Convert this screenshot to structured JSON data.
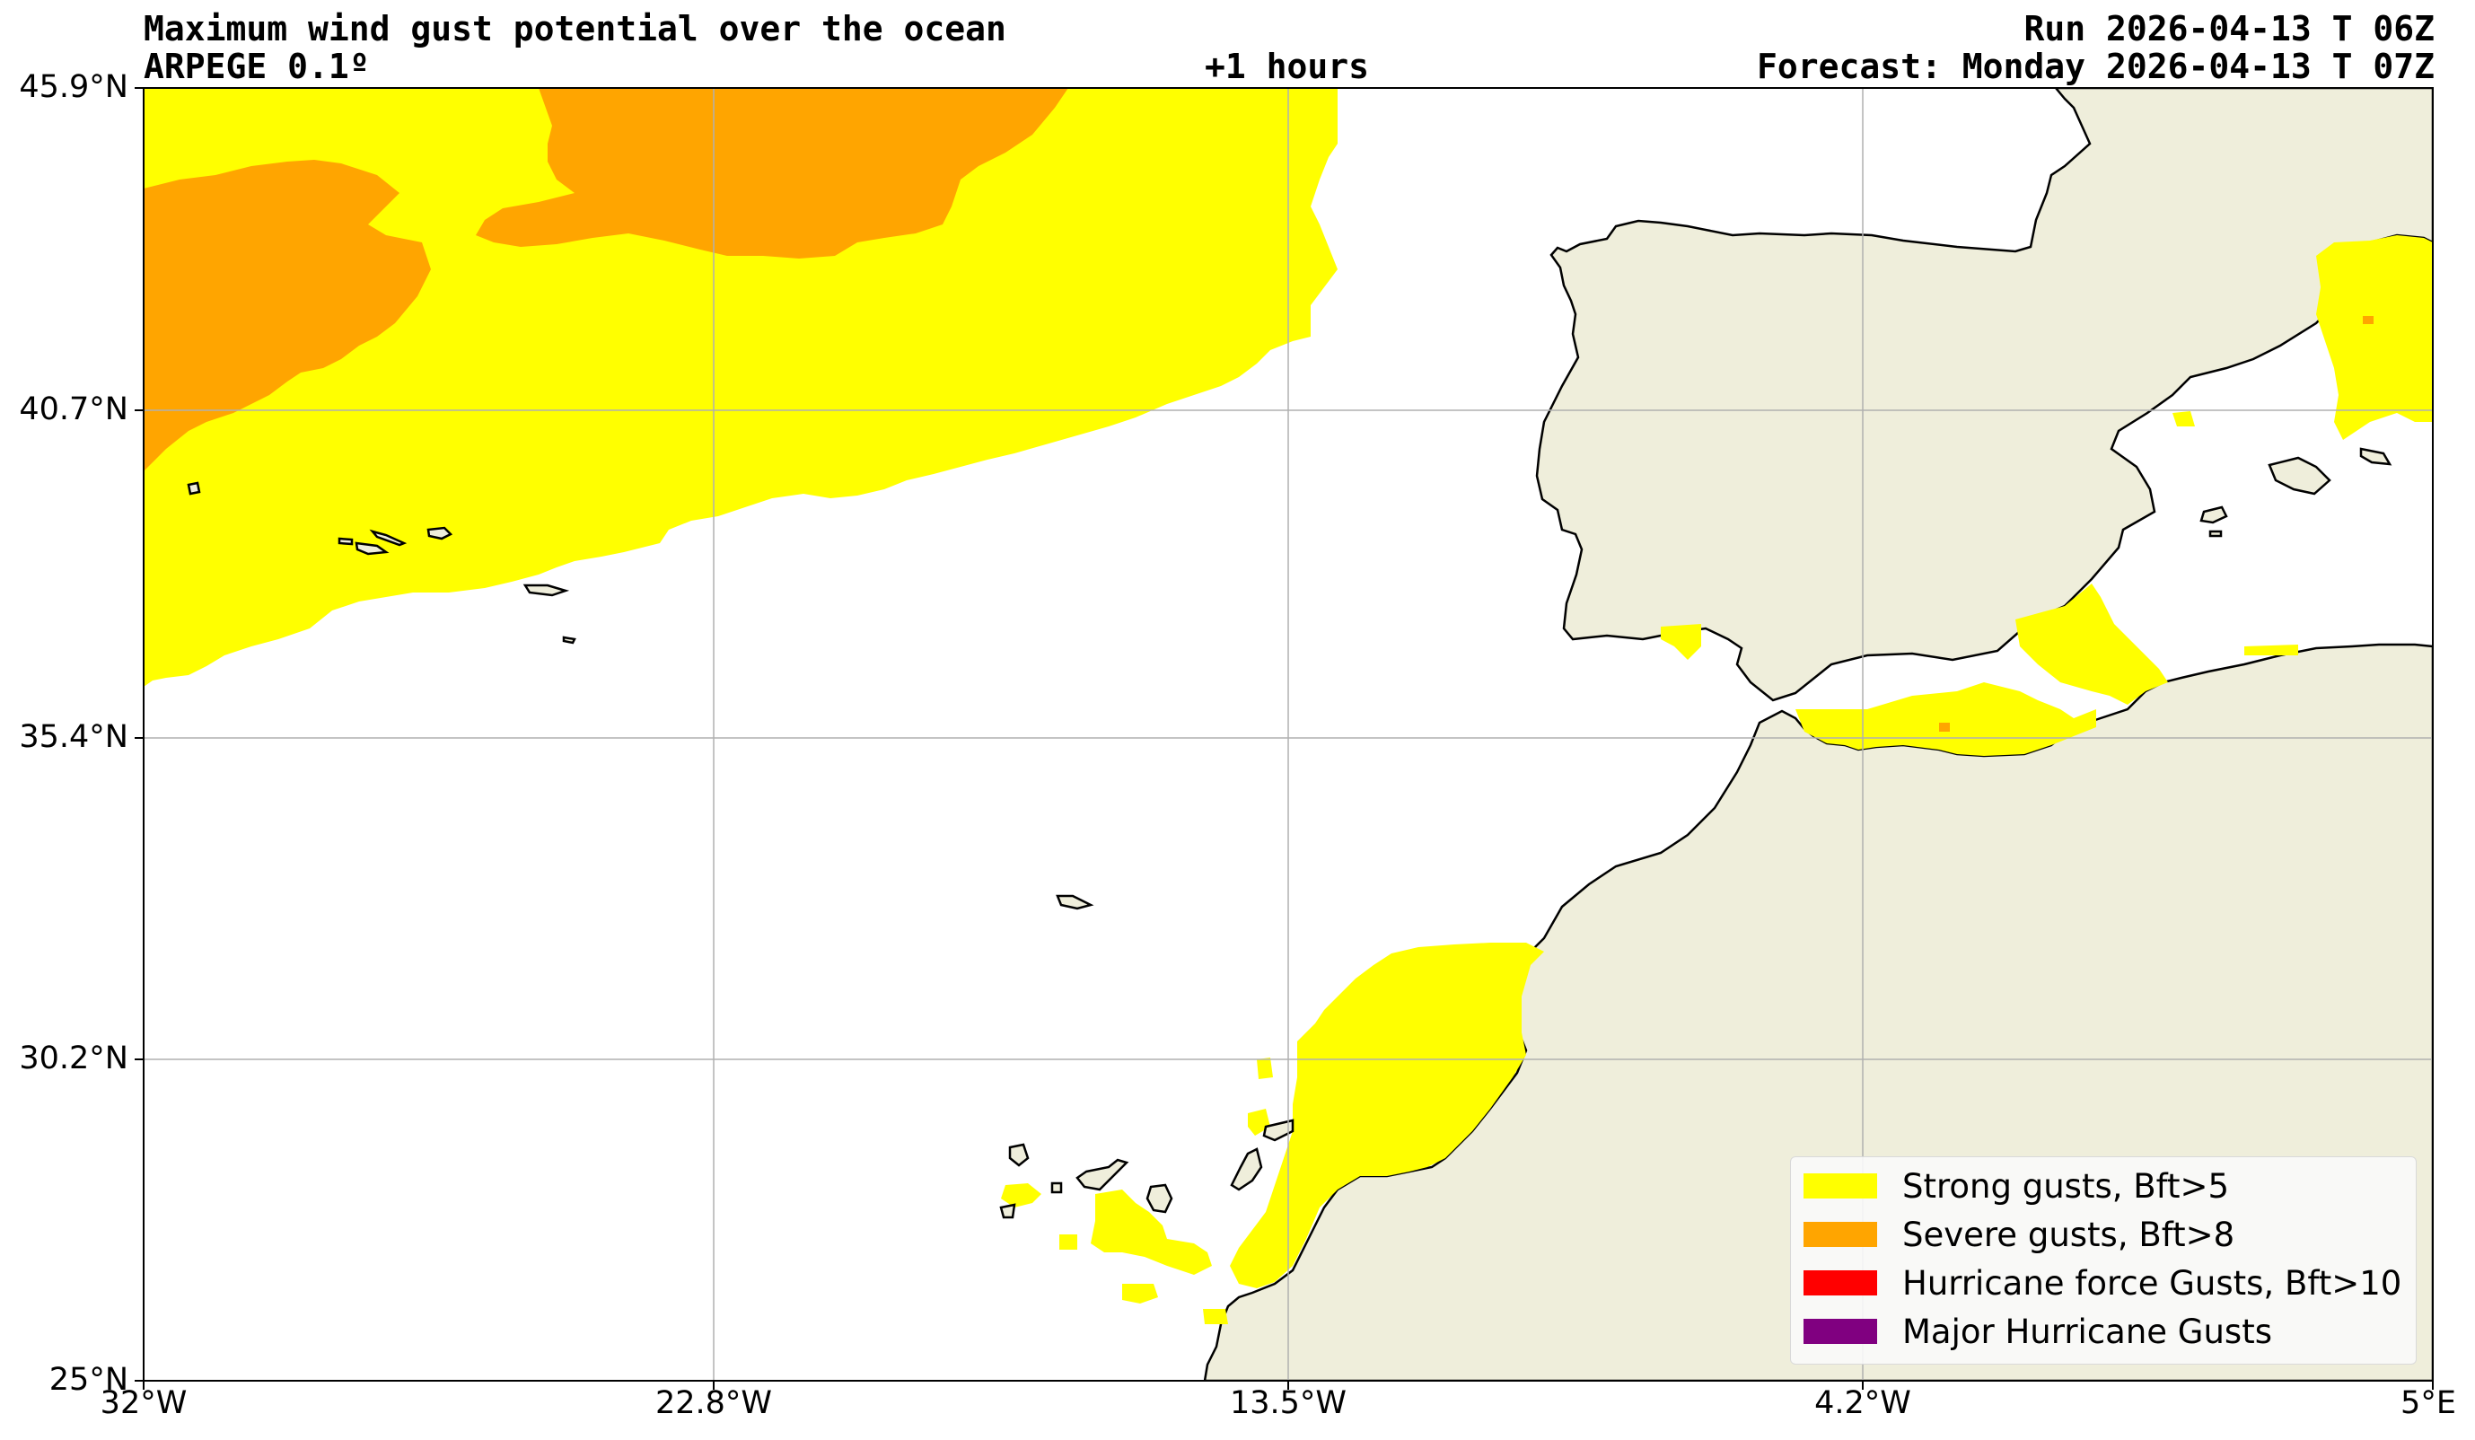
{
  "header": {
    "title": "Maximum wind gust potential over the ocean",
    "model": "ARPEGE 0.1º",
    "lead": "+1 hours",
    "run": "Run 2026-04-13 T 06Z",
    "forecast": "Forecast: Monday 2026-04-13 T 07Z"
  },
  "axes": {
    "lat_ticks": [
      "45.9°N",
      "40.7°N",
      "35.4°N",
      "30.2°N",
      "25°N"
    ],
    "lon_ticks": [
      "32°W",
      "22.8°W",
      "13.5°W",
      "4.2°W",
      "5°E"
    ],
    "lat_range": [
      25,
      45.9
    ],
    "lon_range": [
      -32,
      5
    ],
    "grid": true
  },
  "colors": {
    "land": "#efeedb",
    "ocean": "#ffffff",
    "strong": "#ffff00",
    "severe": "#ffa500",
    "hurricane": "#ff0000",
    "major": "#800080"
  },
  "legend": {
    "items": [
      {
        "label": "Strong gusts, Bft>5",
        "color": "#ffff00"
      },
      {
        "label": "Severe gusts, Bft>8",
        "color": "#ffa500"
      },
      {
        "label": "Hurricane force Gusts, Bft>10",
        "color": "#ff0000"
      },
      {
        "label": "Major Hurricane Gusts",
        "color": "#800080"
      }
    ]
  }
}
